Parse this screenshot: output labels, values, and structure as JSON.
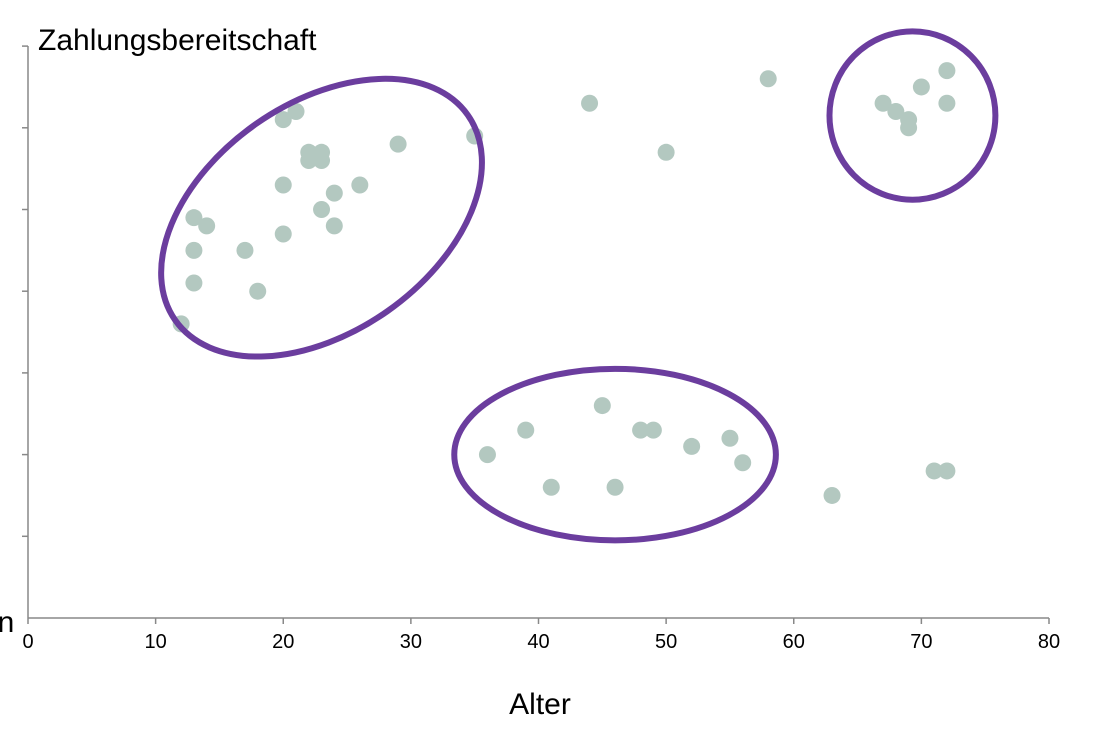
{
  "chart_data": {
    "type": "scatter",
    "title": "",
    "xlabel": "Alter",
    "ylabel": "Zahlungsbereitschaft",
    "xlim": [
      0,
      80
    ],
    "x_ticks": [
      "0",
      "10",
      "20",
      "30",
      "40",
      "50",
      "60",
      "70",
      "80"
    ],
    "y_origin_label": "n",
    "y_tick_count": 7,
    "grid": false,
    "series": [
      {
        "points": [
          {
            "x": 12,
            "y": 3.6
          },
          {
            "x": 13,
            "y": 4.1
          },
          {
            "x": 13,
            "y": 4.5
          },
          {
            "x": 13,
            "y": 4.9
          },
          {
            "x": 14,
            "y": 4.8
          },
          {
            "x": 17,
            "y": 4.5
          },
          {
            "x": 18,
            "y": 4.0
          },
          {
            "x": 20,
            "y": 4.7
          },
          {
            "x": 20,
            "y": 5.3
          },
          {
            "x": 20,
            "y": 6.1
          },
          {
            "x": 21,
            "y": 6.2
          },
          {
            "x": 22,
            "y": 5.7
          },
          {
            "x": 22,
            "y": 5.6
          },
          {
            "x": 23,
            "y": 5.7
          },
          {
            "x": 23,
            "y": 5.6
          },
          {
            "x": 23,
            "y": 5.0
          },
          {
            "x": 24,
            "y": 5.2
          },
          {
            "x": 24,
            "y": 4.8
          },
          {
            "x": 26,
            "y": 5.3
          },
          {
            "x": 29,
            "y": 5.8
          },
          {
            "x": 35,
            "y": 5.9
          },
          {
            "x": 44,
            "y": 6.3
          },
          {
            "x": 50,
            "y": 5.7
          },
          {
            "x": 58,
            "y": 6.6
          },
          {
            "x": 67,
            "y": 6.3
          },
          {
            "x": 68,
            "y": 6.2
          },
          {
            "x": 69,
            "y": 6.1
          },
          {
            "x": 69,
            "y": 6.0
          },
          {
            "x": 70,
            "y": 6.5
          },
          {
            "x": 72,
            "y": 6.7
          },
          {
            "x": 72,
            "y": 6.3
          },
          {
            "x": 36,
            "y": 2.0
          },
          {
            "x": 39,
            "y": 2.3
          },
          {
            "x": 41,
            "y": 1.6
          },
          {
            "x": 45,
            "y": 2.6
          },
          {
            "x": 46,
            "y": 1.6
          },
          {
            "x": 48,
            "y": 2.3
          },
          {
            "x": 49,
            "y": 2.3
          },
          {
            "x": 52,
            "y": 2.1
          },
          {
            "x": 55,
            "y": 2.2
          },
          {
            "x": 56,
            "y": 1.9
          },
          {
            "x": 63,
            "y": 1.5
          },
          {
            "x": 71,
            "y": 1.8
          },
          {
            "x": 72,
            "y": 1.8
          }
        ]
      }
    ],
    "annotations": [
      {
        "shape": "ellipse",
        "label": "",
        "center": {
          "x": 23,
          "y": 4.9
        },
        "rx_data": 14,
        "ry_data": 1.4,
        "rotate_deg": -35
      },
      {
        "shape": "ellipse",
        "label": "",
        "center": {
          "x": 46,
          "y": 2.0
        },
        "rx_data": 12.6,
        "ry_data": 1.05,
        "rotate_deg": 0
      },
      {
        "shape": "ellipse",
        "label": "",
        "center": {
          "x": 69.3,
          "y": 6.15
        },
        "rx_data": 6.5,
        "ry_data": 1.03,
        "rotate_deg": 0
      }
    ],
    "colors": {
      "point": "#b3c8c0",
      "cluster_outline": "#6b3d9e",
      "axis": "#888888"
    }
  }
}
